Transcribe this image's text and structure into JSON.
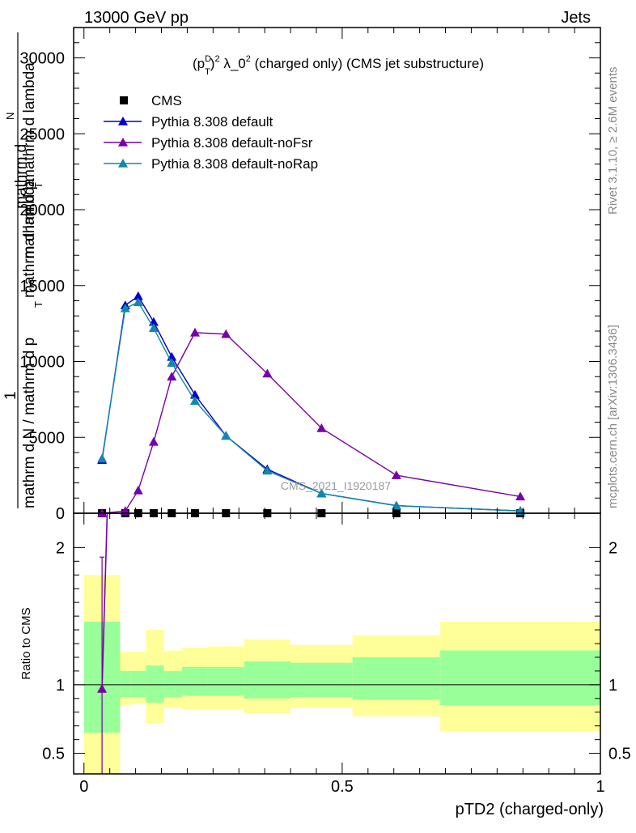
{
  "header": {
    "left": "13000 GeV pp",
    "right": "Jets"
  },
  "side_labels": {
    "rivet": "Rivet 3.1.10, ≥ 2.6M events",
    "mcplots": "mcplots.cern.ch [arXiv:1306.3436]"
  },
  "watermark": "CMS_2021_I1920187",
  "chart_data": [
    {
      "type": "line",
      "title_parts": {
        "open": "(p",
        "sup_d": "D",
        "sub_t": "T",
        "close": ")",
        "sup_2": "2",
        "lambda": " λ_0",
        "sup_2b": "2",
        "tail": " (charged only) (CMS jet substructure)"
      },
      "ylabel_lines": [
        "mathrm d",
        "N",
        "mathrm d p",
        "T",
        " mathrm d lambda",
        "1",
        "mathrm d N / mathrm d p",
        "T",
        " mathrm d lambda"
      ],
      "xlim": [
        -0.02,
        1.0
      ],
      "ylim": [
        0,
        32000
      ],
      "yticks": [
        0,
        5000,
        10000,
        15000,
        20000,
        25000,
        30000
      ],
      "ytick_labels": [
        "0",
        "5000",
        "10000",
        "15000",
        "20000",
        "25000",
        "30000"
      ],
      "grid": false,
      "legend_position": "top-left",
      "legend": [
        {
          "label": "CMS",
          "marker": "square",
          "color": "#000000"
        },
        {
          "label": "Pythia 8.308 default",
          "marker": "triangle",
          "color": "#0000cc"
        },
        {
          "label": "Pythia 8.308 default-noFsr",
          "marker": "triangle",
          "color": "#7700aa"
        },
        {
          "label": "Pythia 8.308 default-noRap",
          "marker": "triangle",
          "color": "#1188aa"
        }
      ],
      "x": [
        0.035,
        0.08,
        0.105,
        0.135,
        0.17,
        0.215,
        0.275,
        0.355,
        0.46,
        0.605,
        0.845
      ],
      "series": [
        {
          "name": "CMS",
          "color": "#000000",
          "marker": "square",
          "values": [
            0,
            0,
            0,
            0,
            0,
            0,
            0,
            0,
            0,
            0,
            0
          ]
        },
        {
          "name": "Pythia 8.308 default",
          "color": "#0000cc",
          "marker": "triangle",
          "values": [
            3500,
            13700,
            14300,
            12600,
            10300,
            7800,
            5100,
            2900,
            1300,
            500,
            150
          ]
        },
        {
          "name": "Pythia 8.308 default-noFsr",
          "color": "#7700aa",
          "marker": "triangle",
          "values": [
            0,
            150,
            1500,
            4700,
            9000,
            11900,
            11800,
            9200,
            5600,
            2500,
            1100
          ]
        },
        {
          "name": "Pythia 8.308 default-noRap",
          "color": "#1188aa",
          "marker": "triangle",
          "values": [
            3600,
            13500,
            13900,
            12200,
            9900,
            7400,
            5100,
            2800,
            1300,
            500,
            150
          ]
        }
      ]
    },
    {
      "type": "ratio",
      "ylabel": "Ratio to CMS",
      "xlabel": "pTD2 (charged-only)",
      "xlim": [
        -0.02,
        1.0
      ],
      "ylim": [
        0.35,
        2.25
      ],
      "yticks": [
        0.5,
        1,
        2
      ],
      "ytick_labels": [
        "0.5",
        "1",
        "2"
      ],
      "xticks": [
        0,
        0.5,
        1
      ],
      "xtick_labels": [
        "0",
        "0.5",
        "1"
      ],
      "bins": [
        0.0,
        0.07,
        0.09,
        0.12,
        0.155,
        0.19,
        0.24,
        0.31,
        0.4,
        0.52,
        0.69,
        1.0
      ],
      "band_yellow": [
        [
          0.35,
          1.8
        ],
        [
          0.85,
          1.24
        ],
        [
          0.86,
          1.24
        ],
        [
          0.72,
          1.4
        ],
        [
          0.83,
          1.25
        ],
        [
          0.82,
          1.27
        ],
        [
          0.82,
          1.28
        ],
        [
          0.79,
          1.33
        ],
        [
          0.83,
          1.29
        ],
        [
          0.77,
          1.36
        ],
        [
          0.66,
          1.46
        ]
      ],
      "band_green": [
        [
          0.65,
          1.46
        ],
        [
          0.91,
          1.1
        ],
        [
          0.91,
          1.1
        ],
        [
          0.87,
          1.14
        ],
        [
          0.91,
          1.1
        ],
        [
          0.92,
          1.13
        ],
        [
          0.92,
          1.13
        ],
        [
          0.9,
          1.17
        ],
        [
          0.91,
          1.16
        ],
        [
          0.89,
          1.2
        ],
        [
          0.85,
          1.25
        ]
      ],
      "series": [
        {
          "name": "Pythia 8.308 default-noFsr",
          "color": "#7700aa",
          "x": [
            0.035,
            0.045
          ],
          "values": [
            0.97,
            2.4
          ],
          "err": [
            [
              0.35,
              1.93
            ],
            null
          ]
        }
      ]
    }
  ]
}
